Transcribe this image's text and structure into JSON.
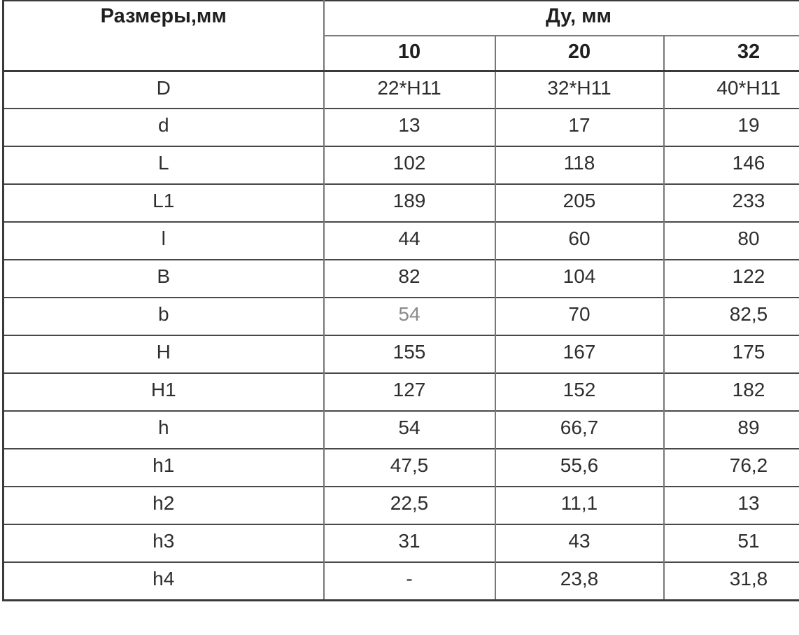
{
  "page": {
    "background": "#ffffff"
  },
  "colors": {
    "page_bg": "#ffffff",
    "text": "#2e2e2e",
    "header_text": "#1f1f1f",
    "muted_text": "#8a8a8a",
    "border_dark": "#3a3a3a",
    "border_row": "#484848",
    "border_vertical": "#777777",
    "border_group": "#7a7a7a"
  },
  "chart_data": {
    "type": "table",
    "corner_header": "Размеры,мм",
    "group_header": "Ду, мм",
    "columns": [
      "10",
      "20",
      "32"
    ],
    "rows": [
      {
        "label": "D",
        "values": [
          "22*H11",
          "32*H11",
          "40*H11"
        ]
      },
      {
        "label": "d",
        "values": [
          "13",
          "17",
          "19"
        ]
      },
      {
        "label": "L",
        "values": [
          "102",
          "118",
          "146"
        ]
      },
      {
        "label": "L1",
        "values": [
          "189",
          "205",
          "233"
        ]
      },
      {
        "label": "l",
        "values": [
          "44",
          "60",
          "80"
        ]
      },
      {
        "label": "B",
        "values": [
          "82",
          "104",
          "122"
        ]
      },
      {
        "label": "b",
        "values": [
          "54",
          "70",
          "82,5"
        ]
      },
      {
        "label": "H",
        "values": [
          "155",
          "167",
          "175"
        ]
      },
      {
        "label": "H1",
        "values": [
          "127",
          "152",
          "182"
        ]
      },
      {
        "label": "h",
        "values": [
          "54",
          "66,7",
          "89"
        ]
      },
      {
        "label": "h1",
        "values": [
          "47,5",
          "55,6",
          "76,2"
        ]
      },
      {
        "label": "h2",
        "values": [
          "22,5",
          "11,1",
          "13"
        ]
      },
      {
        "label": "h3",
        "values": [
          "31",
          "43",
          "51"
        ]
      },
      {
        "label": "h4",
        "values": [
          "-",
          "23,8",
          "31,8"
        ]
      }
    ]
  },
  "render_hints": {
    "muted_cells": [
      {
        "row": "b",
        "col": 0
      }
    ]
  }
}
